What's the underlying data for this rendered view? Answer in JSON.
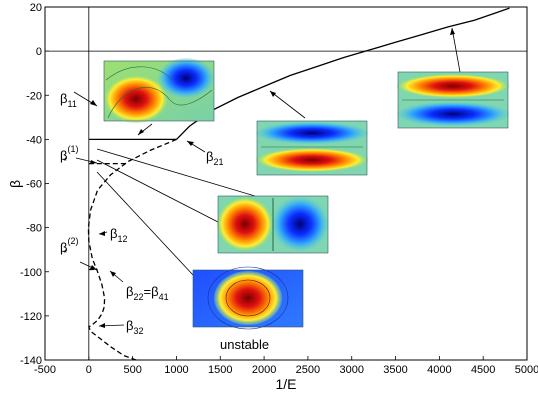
{
  "chart_data": {
    "type": "line",
    "xlabel": "1/E",
    "ylabel": "β",
    "xlim": [
      -500,
      5000
    ],
    "ylim": [
      -140,
      20
    ],
    "xticks": [
      -500,
      0,
      500,
      1000,
      1500,
      2000,
      2500,
      3000,
      3500,
      4000,
      4500,
      5000
    ],
    "yticks": [
      20,
      0,
      -20,
      -40,
      -60,
      -80,
      -100,
      -120,
      -140
    ],
    "grid": false,
    "legend": "none",
    "series": [
      {
        "style": "solid",
        "x": [
          1000,
          1150,
          1400,
          1700,
          2000,
          2300,
          2600,
          2900,
          3200,
          3500,
          3800,
          4100,
          4400,
          4800
        ],
        "y": [
          -40,
          -34,
          -27,
          -21,
          -16,
          -11,
          -7,
          -3,
          0.5,
          4,
          7.5,
          11,
          14,
          19.5
        ]
      },
      {
        "style": "dashed",
        "x": [
          1000,
          700,
          450,
          250,
          100,
          20,
          -5,
          0,
          40,
          100,
          150,
          180,
          175,
          150,
          100,
          40,
          0,
          20,
          120,
          250,
          400,
          540
        ],
        "y": [
          -40,
          -45,
          -50,
          -56,
          -63,
          -72,
          -80,
          -86,
          -94,
          -100,
          -106,
          -112,
          -116,
          -119,
          -122,
          -124,
          -125,
          -127,
          -130,
          -134,
          -138,
          -142
        ]
      },
      {
        "style": "solid",
        "x": [
          0,
          1000
        ],
        "y": [
          -40,
          -40
        ]
      },
      {
        "style": "dashed",
        "x": [
          0,
          450
        ],
        "y": [
          -51,
          -51
        ]
      },
      {
        "style": "dashed",
        "x": [
          0,
          100
        ],
        "y": [
          -99,
          -99
        ]
      }
    ],
    "annotations": [
      {
        "main": "β",
        "sub": "11",
        "sup": ""
      },
      {
        "main": "β",
        "sub": "21",
        "sup": ""
      },
      {
        "main": "β",
        "sub": "*",
        "sup": "(1)"
      },
      {
        "main": "β",
        "sub": "12",
        "sup": ""
      },
      {
        "main": "β",
        "sub": "*",
        "sup": "(2)"
      },
      {
        "main": "β",
        "sub": "22",
        "sup": "",
        "suffix": "=β",
        "suffix_sub": "41"
      },
      {
        "main": "β",
        "sub": "32",
        "sup": ""
      }
    ],
    "note": "unstable"
  }
}
